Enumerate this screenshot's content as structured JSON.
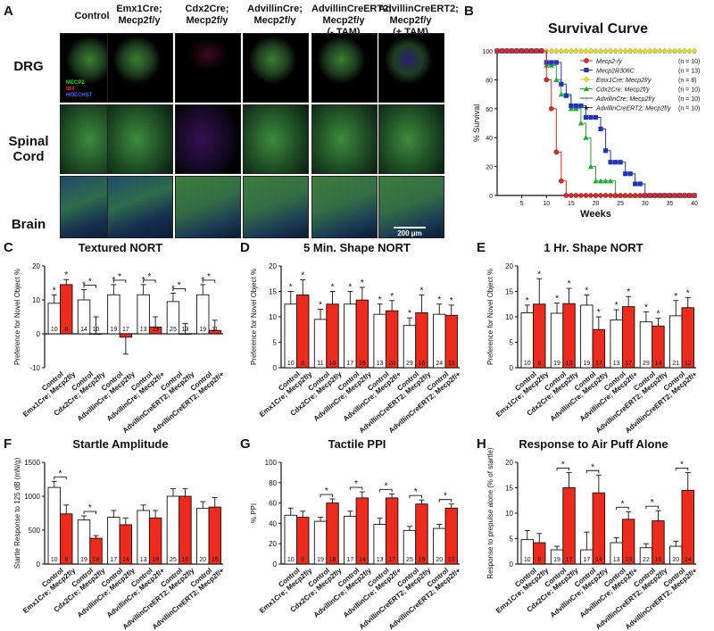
{
  "panelA": {
    "letter": "A",
    "columns": [
      {
        "l1": "Control",
        "l2": ""
      },
      {
        "l1": "Emx1Cre;",
        "l2": "Mecp2f/y"
      },
      {
        "l1": "Cdx2Cre;",
        "l2": "Mecp2f/y"
      },
      {
        "l1": "AdvillinCre;",
        "l2": "Mecp2f/y"
      },
      {
        "l1": "AdvillinCreERT2;",
        "l2": "Mecp2f/y",
        "l3": "(- TAM)"
      },
      {
        "l1": "AdvillinCreERT2;",
        "l2": "Mecp2f/y",
        "l3": "(+ TAM)"
      }
    ],
    "rows": [
      "DRG",
      "Spinal Cord",
      "Brain"
    ],
    "stain_legend": [
      {
        "label": "MECP2",
        "color": "#22dd22"
      },
      {
        "label": "IB4",
        "color": "#ff2222"
      },
      {
        "label": "HOECHST",
        "color": "#4466ff"
      }
    ],
    "scale_bar": "200 μm"
  },
  "panelB": {
    "letter": "B",
    "chart_data": {
      "type": "line",
      "title": "Survival Curve",
      "xlabel": "Weeks",
      "ylabel": "% Survival",
      "xlim": [
        0,
        40
      ],
      "ylim": [
        0,
        100
      ],
      "xticks": [
        5,
        10,
        15,
        20,
        25,
        30,
        35,
        40
      ],
      "yticks": [
        0,
        20,
        40,
        60,
        80,
        100
      ],
      "legend_position": "top-right",
      "series": [
        {
          "name": "Mecp2-/y",
          "n": "(n = 10)",
          "color": "#ee2222",
          "marker": "circle",
          "x": [
            0,
            5,
            8,
            10,
            11,
            12,
            13,
            14,
            15,
            20,
            25,
            30,
            35,
            40
          ],
          "y": [
            100,
            100,
            100,
            80,
            60,
            30,
            10,
            0,
            0,
            0,
            0,
            0,
            0,
            0
          ]
        },
        {
          "name": "Mecp2R306C",
          "n": "(n = 13)",
          "color": "#2233bb",
          "marker": "square",
          "x": [
            0,
            5,
            8,
            10,
            12,
            13,
            14,
            15,
            16,
            17,
            18,
            19,
            20,
            21,
            22,
            23,
            24,
            25,
            26,
            27,
            28,
            29,
            30,
            35,
            40
          ],
          "y": [
            100,
            100,
            100,
            92,
            92,
            77,
            69,
            62,
            62,
            62,
            54,
            54,
            54,
            46,
            31,
            23,
            23,
            23,
            15,
            15,
            8,
            8,
            0,
            0,
            0
          ]
        },
        {
          "name": "Emx1Cre; Mecp2f/y",
          "n": "(n = 8)",
          "color": "#dddd22",
          "marker": "diamond",
          "x": [
            0,
            5,
            10,
            15,
            20,
            25,
            30,
            35,
            40
          ],
          "y": [
            100,
            100,
            100,
            100,
            100,
            100,
            100,
            100,
            100
          ]
        },
        {
          "name": "Cdx2Cre; Mecp2f/y",
          "n": "(n = 10)",
          "color": "#22aa33",
          "marker": "triangle",
          "x": [
            0,
            5,
            8,
            10,
            12,
            13,
            14,
            15,
            16,
            17,
            18,
            19,
            20,
            21,
            22,
            23,
            24,
            25,
            30,
            35,
            40
          ],
          "y": [
            100,
            100,
            100,
            90,
            80,
            70,
            70,
            60,
            60,
            50,
            40,
            20,
            10,
            10,
            10,
            10,
            0,
            0,
            0,
            0,
            0
          ]
        },
        {
          "name": "AdvillinCre; Mecp2f/y",
          "n": "(n = 10)",
          "color": "#999999",
          "marker": "star-open",
          "x": [
            0,
            5,
            10,
            15,
            20,
            25,
            30,
            35,
            40
          ],
          "y": [
            100,
            100,
            100,
            100,
            100,
            100,
            100,
            100,
            100
          ]
        },
        {
          "name": "AdvillinCreERT2; Mecp2f/y",
          "n": "(n = 10)",
          "color": "#111111",
          "marker": "star",
          "x": [
            0,
            5,
            10,
            15,
            20,
            25,
            30,
            35,
            40
          ],
          "y": [
            100,
            100,
            100,
            100,
            100,
            100,
            100,
            100,
            100
          ]
        }
      ]
    }
  },
  "bar_panels": [
    {
      "letter": "C",
      "title": "Textured NORT",
      "ylabel": "Preference for Novel Object %",
      "ymin": -10,
      "ymax": 20,
      "yticks": [
        -10,
        0,
        10,
        20
      ],
      "pairs": [
        {
          "ctrl": 9,
          "ctrl_err": 2.5,
          "mut": 14.5,
          "mut_err": 1.5,
          "n_ctrl": "10",
          "n_mut": "8",
          "sig_ctrl": true,
          "sig_mut": true,
          "bracket": false
        },
        {
          "ctrl": 10,
          "ctrl_err": 3,
          "mut": 0,
          "mut_err": 5,
          "n_ctrl": "14",
          "n_mut": "10",
          "sig_ctrl": true,
          "sig_mut": false,
          "bracket": true
        },
        {
          "ctrl": 11.5,
          "ctrl_err": 3,
          "mut": -1,
          "mut_err": 5,
          "n_ctrl": "19",
          "n_mut": "17",
          "sig_ctrl": true,
          "sig_mut": false,
          "bracket": true
        },
        {
          "ctrl": 11.5,
          "ctrl_err": 3,
          "mut": 2,
          "mut_err": 3,
          "n_ctrl": "13",
          "n_mut": "19",
          "sig_ctrl": true,
          "sig_mut": false,
          "bracket": true
        },
        {
          "ctrl": 9.5,
          "ctrl_err": 2.5,
          "mut": 0,
          "mut_err": 3,
          "n_ctrl": "25",
          "n_mut": "13",
          "sig_ctrl": true,
          "sig_mut": false,
          "bracket": true
        },
        {
          "ctrl": 11.5,
          "ctrl_err": 3,
          "mut": 1,
          "mut_err": 3,
          "n_ctrl": "19",
          "n_mut": "11",
          "sig_ctrl": true,
          "sig_mut": false,
          "bracket": true
        }
      ]
    },
    {
      "letter": "D",
      "title": "5 Min. Shape NORT",
      "ylabel": "Preference for Novel Object %",
      "ymin": 0,
      "ymax": 20,
      "yticks": [
        0,
        5,
        10,
        15,
        20
      ],
      "pairs": [
        {
          "ctrl": 12.5,
          "ctrl_err": 2.5,
          "mut": 14.3,
          "mut_err": 3,
          "n_ctrl": "10",
          "n_mut": "8",
          "sig_ctrl": true,
          "sig_mut": true,
          "bracket": false
        },
        {
          "ctrl": 9.5,
          "ctrl_err": 2,
          "mut": 12.5,
          "mut_err": 2.5,
          "n_ctrl": "11",
          "n_mut": "10",
          "sig_ctrl": true,
          "sig_mut": true,
          "bracket": false
        },
        {
          "ctrl": 12.5,
          "ctrl_err": 2.5,
          "mut": 13.3,
          "mut_err": 2.5,
          "n_ctrl": "17",
          "n_mut": "15",
          "sig_ctrl": true,
          "sig_mut": true,
          "bracket": false
        },
        {
          "ctrl": 10.5,
          "ctrl_err": 2,
          "mut": 11.2,
          "mut_err": 2,
          "n_ctrl": "13",
          "n_mut": "20",
          "sig_ctrl": true,
          "sig_mut": true,
          "bracket": false
        },
        {
          "ctrl": 8.3,
          "ctrl_err": 1.5,
          "mut": 10.8,
          "mut_err": 3.5,
          "n_ctrl": "29",
          "n_mut": "16",
          "sig_ctrl": true,
          "sig_mut": true,
          "bracket": false
        },
        {
          "ctrl": 10.5,
          "ctrl_err": 2,
          "mut": 10.3,
          "mut_err": 2,
          "n_ctrl": "24",
          "n_mut": "15",
          "sig_ctrl": true,
          "sig_mut": true,
          "bracket": false
        }
      ]
    },
    {
      "letter": "E",
      "title": "1 Hr. Shape NORT",
      "ylabel": "Preference for Novel Object %",
      "ymin": 0,
      "ymax": 20,
      "yticks": [
        0,
        5,
        10,
        15,
        20
      ],
      "pairs": [
        {
          "ctrl": 10.8,
          "ctrl_err": 1.5,
          "mut": 12.5,
          "mut_err": 5,
          "n_ctrl": "10",
          "n_mut": "8",
          "sig_ctrl": true,
          "sig_mut": true,
          "bracket": false
        },
        {
          "ctrl": 10.7,
          "ctrl_err": 2,
          "mut": 12.6,
          "mut_err": 3,
          "n_ctrl": "19",
          "n_mut": "13",
          "sig_ctrl": true,
          "sig_mut": true,
          "bracket": false
        },
        {
          "ctrl": 12.3,
          "ctrl_err": 2,
          "mut": 7.5,
          "mut_err": 2.5,
          "n_ctrl": "19",
          "n_mut": "17",
          "sig_ctrl": true,
          "sig_mut": true,
          "bracket": false
        },
        {
          "ctrl": 9.4,
          "ctrl_err": 2,
          "mut": 12,
          "mut_err": 2,
          "n_ctrl": "13",
          "n_mut": "17",
          "sig_ctrl": true,
          "sig_mut": true,
          "bracket": false
        },
        {
          "ctrl": 9,
          "ctrl_err": 2,
          "mut": 8.2,
          "mut_err": 1.5,
          "n_ctrl": "29",
          "n_mut": "14",
          "sig_ctrl": true,
          "sig_mut": true,
          "bracket": false
        },
        {
          "ctrl": 10.2,
          "ctrl_err": 3,
          "mut": 11.8,
          "mut_err": 2,
          "n_ctrl": "21",
          "n_mut": "12",
          "sig_ctrl": true,
          "sig_mut": true,
          "bracket": false
        }
      ]
    },
    {
      "letter": "F",
      "title": "Startle Amplitude",
      "ylabel": "Startle Response to 125 dB (mN/g)",
      "ymin": 0,
      "ymax": 1500,
      "yticks": [
        0,
        500,
        1000,
        1500
      ],
      "pairs": [
        {
          "ctrl": 1130,
          "ctrl_err": 90,
          "mut": 740,
          "mut_err": 130,
          "n_ctrl": "10",
          "n_mut": "8",
          "sig_ctrl": false,
          "sig_mut": false,
          "bracket": true
        },
        {
          "ctrl": 650,
          "ctrl_err": 60,
          "mut": 380,
          "mut_err": 40,
          "n_ctrl": "19",
          "n_mut": "18",
          "sig_ctrl": false,
          "sig_mut": false,
          "bracket": true
        },
        {
          "ctrl": 690,
          "ctrl_err": 100,
          "mut": 580,
          "mut_err": 100,
          "n_ctrl": "17",
          "n_mut": "14",
          "sig_ctrl": false,
          "sig_mut": false,
          "bracket": false
        },
        {
          "ctrl": 790,
          "ctrl_err": 80,
          "mut": 680,
          "mut_err": 110,
          "n_ctrl": "13",
          "n_mut": "19",
          "sig_ctrl": false,
          "sig_mut": false,
          "bracket": false
        },
        {
          "ctrl": 1000,
          "ctrl_err": 110,
          "mut": 1000,
          "mut_err": 110,
          "n_ctrl": "25",
          "n_mut": "16",
          "sig_ctrl": false,
          "sig_mut": false,
          "bracket": false
        },
        {
          "ctrl": 820,
          "ctrl_err": 100,
          "mut": 840,
          "mut_err": 140,
          "n_ctrl": "20",
          "n_mut": "15",
          "sig_ctrl": false,
          "sig_mut": false,
          "bracket": false
        }
      ]
    },
    {
      "letter": "G",
      "title": "Tactile PPI",
      "ylabel": "% PPI",
      "ymin": 0,
      "ymax": 100,
      "yticks": [
        0,
        20,
        40,
        60,
        80,
        100
      ],
      "pairs": [
        {
          "ctrl": 48,
          "ctrl_err": 7,
          "mut": 46,
          "mut_err": 6,
          "n_ctrl": "10",
          "n_mut": "8",
          "sig_ctrl": false,
          "sig_mut": false,
          "bracket": false
        },
        {
          "ctrl": 42,
          "ctrl_err": 4,
          "mut": 60,
          "mut_err": 4,
          "n_ctrl": "19",
          "n_mut": "18",
          "sig_ctrl": false,
          "sig_mut": false,
          "bracket": true
        },
        {
          "ctrl": 47,
          "ctrl_err": 5,
          "mut": 65,
          "mut_err": 6,
          "n_ctrl": "17",
          "n_mut": "14",
          "sig_ctrl": false,
          "sig_mut": false,
          "bracket": true
        },
        {
          "ctrl": 39,
          "ctrl_err": 6,
          "mut": 65,
          "mut_err": 4,
          "n_ctrl": "13",
          "n_mut": "17",
          "sig_ctrl": false,
          "sig_mut": false,
          "bracket": true
        },
        {
          "ctrl": 33,
          "ctrl_err": 4,
          "mut": 59,
          "mut_err": 4,
          "n_ctrl": "25",
          "n_mut": "18",
          "sig_ctrl": false,
          "sig_mut": false,
          "bracket": true
        },
        {
          "ctrl": 35,
          "ctrl_err": 4,
          "mut": 55,
          "mut_err": 4,
          "n_ctrl": "20",
          "n_mut": "13",
          "sig_ctrl": false,
          "sig_mut": false,
          "bracket": true
        }
      ]
    },
    {
      "letter": "H",
      "title": "Response to Air Puff Alone",
      "ylabel": "Response to prepulse alone (% of startle)",
      "ymin": 0,
      "ymax": 20,
      "yticks": [
        0,
        5,
        10,
        15,
        20
      ],
      "pairs": [
        {
          "ctrl": 4.8,
          "ctrl_err": 1.8,
          "mut": 4.2,
          "mut_err": 1.8,
          "n_ctrl": "10",
          "n_mut": "8",
          "sig_ctrl": false,
          "sig_mut": false,
          "bracket": false
        },
        {
          "ctrl": 2.8,
          "ctrl_err": 0.7,
          "mut": 15,
          "mut_err": 3,
          "n_ctrl": "19",
          "n_mut": "17",
          "sig_ctrl": false,
          "sig_mut": false,
          "bracket": true
        },
        {
          "ctrl": 2.8,
          "ctrl_err": 3.5,
          "mut": 14,
          "mut_err": 3.5,
          "n_ctrl": "17",
          "n_mut": "14",
          "sig_ctrl": false,
          "sig_mut": false,
          "bracket": true
        },
        {
          "ctrl": 4.2,
          "ctrl_err": 1,
          "mut": 8.8,
          "mut_err": 1.5,
          "n_ctrl": "13",
          "n_mut": "18",
          "sig_ctrl": false,
          "sig_mut": false,
          "bracket": true
        },
        {
          "ctrl": 3.2,
          "ctrl_err": 0.8,
          "mut": 8.5,
          "mut_err": 2,
          "n_ctrl": "22",
          "n_mut": "16",
          "sig_ctrl": false,
          "sig_mut": false,
          "bracket": true
        },
        {
          "ctrl": 3.5,
          "ctrl_err": 1,
          "mut": 14.5,
          "mut_err": 3.5,
          "n_ctrl": "20",
          "n_mut": "14",
          "sig_ctrl": false,
          "sig_mut": false,
          "bracket": true
        }
      ]
    }
  ],
  "x_group_labels": [
    {
      "ctrl": "Control",
      "mut": "Emx1Cre; Mecp2f/y"
    },
    {
      "ctrl": "Control",
      "mut": "Cdx2Cre; Mecp2f/y"
    },
    {
      "ctrl": "Control",
      "mut": "AdvillinCre; Mecp2f/y"
    },
    {
      "ctrl": "Control",
      "mut": "AdvillinCre; Mecp2f/+"
    },
    {
      "ctrl": "Control",
      "mut": "AdvillinCreERT2; Mecp2f/y"
    },
    {
      "ctrl": "Control",
      "mut": "AdvillinCreERT2; Mecp2f/+"
    }
  ],
  "colors": {
    "control": "#ffffff",
    "mutant": "#ee2a1c",
    "stroke": "#111111"
  },
  "significance_marker": "*"
}
